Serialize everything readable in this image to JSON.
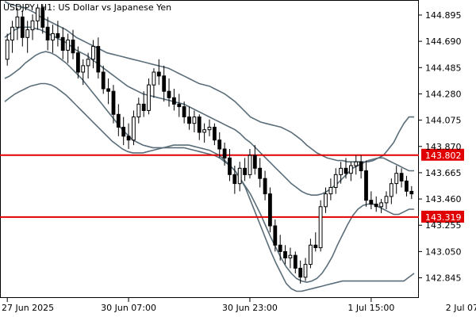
{
  "chart_data": {
    "type": "candlestick",
    "title": "USDJPY, H1:  US Dollar vs Japanese Yen",
    "ylim": [
      142.7,
      145.0
    ],
    "y_ticks": [
      "144.895",
      "144.690",
      "144.485",
      "144.280",
      "144.075",
      "143.870",
      "143.665",
      "143.460",
      "143.255",
      "143.050",
      "142.845"
    ],
    "x_ticks": [
      {
        "label": "27 Jun 2025",
        "index": 0
      },
      {
        "label": "30 Jun 07:00",
        "index": 24
      },
      {
        "label": "30 Jun 23:00",
        "index": 48
      },
      {
        "label": "1 Jul 15:00",
        "index": 72
      },
      {
        "label": "2 Jul 07:00",
        "index": 96
      }
    ],
    "horizontal_levels": [
      {
        "value": 143.802,
        "label": "143.802",
        "color": "#e00000"
      },
      {
        "value": 143.319,
        "label": "143.319",
        "color": "#e00000"
      }
    ],
    "colors": {
      "bull_body": "#ffffff",
      "bear_body": "#000000",
      "wick": "#000000",
      "band": "#5a6e7a",
      "axis": "#000000",
      "level": "#e00000"
    },
    "candles": [
      [
        144.55,
        144.75,
        144.5,
        144.7
      ],
      [
        144.7,
        144.85,
        144.6,
        144.8
      ],
      [
        144.8,
        144.95,
        144.7,
        144.88
      ],
      [
        144.88,
        144.93,
        144.65,
        144.72
      ],
      [
        144.72,
        144.85,
        144.6,
        144.78
      ],
      [
        144.78,
        144.9,
        144.7,
        144.85
      ],
      [
        144.85,
        144.98,
        144.78,
        144.95
      ],
      [
        144.95,
        144.98,
        144.75,
        144.8
      ],
      [
        144.8,
        144.88,
        144.62,
        144.7
      ],
      [
        144.7,
        144.82,
        144.6,
        144.75
      ],
      [
        144.75,
        144.85,
        144.65,
        144.72
      ],
      [
        144.72,
        144.8,
        144.55,
        144.62
      ],
      [
        144.62,
        144.75,
        144.52,
        144.7
      ],
      [
        144.7,
        144.78,
        144.55,
        144.6
      ],
      [
        144.6,
        144.65,
        144.4,
        144.45
      ],
      [
        144.45,
        144.55,
        144.35,
        144.5
      ],
      [
        144.5,
        144.6,
        144.4,
        144.55
      ],
      [
        144.55,
        144.7,
        144.48,
        144.65
      ],
      [
        144.65,
        144.72,
        144.4,
        144.45
      ],
      [
        144.45,
        144.5,
        144.28,
        144.32
      ],
      [
        144.32,
        144.4,
        144.2,
        144.3
      ],
      [
        144.3,
        144.35,
        144.05,
        144.12
      ],
      [
        144.12,
        144.2,
        143.95,
        144.02
      ],
      [
        144.02,
        144.1,
        143.88,
        143.95
      ],
      [
        143.95,
        144.05,
        143.85,
        143.92
      ],
      [
        143.92,
        144.15,
        143.88,
        144.1
      ],
      [
        144.1,
        144.25,
        144.05,
        144.2
      ],
      [
        144.2,
        144.3,
        144.1,
        144.15
      ],
      [
        144.15,
        144.4,
        144.12,
        144.35
      ],
      [
        144.35,
        144.48,
        144.25,
        144.45
      ],
      [
        144.45,
        144.55,
        144.35,
        144.42
      ],
      [
        144.42,
        144.5,
        144.22,
        144.3
      ],
      [
        144.3,
        144.4,
        144.18,
        144.25
      ],
      [
        144.25,
        144.32,
        144.15,
        144.2
      ],
      [
        144.2,
        144.28,
        144.1,
        144.18
      ],
      [
        144.18,
        144.22,
        144.05,
        144.1
      ],
      [
        144.1,
        144.18,
        144.0,
        144.05
      ],
      [
        144.05,
        144.15,
        143.98,
        144.1
      ],
      [
        144.1,
        144.12,
        143.92,
        143.98
      ],
      [
        143.98,
        144.05,
        143.9,
        144.0
      ],
      [
        144.0,
        144.08,
        143.95,
        144.02
      ],
      [
        144.02,
        144.05,
        143.88,
        143.92
      ],
      [
        143.92,
        143.98,
        143.78,
        143.85
      ],
      [
        143.85,
        143.9,
        143.72,
        143.78
      ],
      [
        143.78,
        143.85,
        143.6,
        143.65
      ],
      [
        143.65,
        143.72,
        143.5,
        143.58
      ],
      [
        143.58,
        143.75,
        143.52,
        143.7
      ],
      [
        143.7,
        143.78,
        143.6,
        143.65
      ],
      [
        143.65,
        143.85,
        143.62,
        143.8
      ],
      [
        143.8,
        143.88,
        143.65,
        143.7
      ],
      [
        143.7,
        143.78,
        143.55,
        143.62
      ],
      [
        143.62,
        143.68,
        143.45,
        143.5
      ],
      [
        143.5,
        143.55,
        143.2,
        143.25
      ],
      [
        143.25,
        143.3,
        143.05,
        143.1
      ],
      [
        143.1,
        143.18,
        142.98,
        143.05
      ],
      [
        143.05,
        143.1,
        142.95,
        143.0
      ],
      [
        143.0,
        143.08,
        142.92,
        143.02
      ],
      [
        143.02,
        143.05,
        142.88,
        142.92
      ],
      [
        142.92,
        142.98,
        142.8,
        142.85
      ],
      [
        142.85,
        143.0,
        142.82,
        142.95
      ],
      [
        142.95,
        143.15,
        142.92,
        143.1
      ],
      [
        143.1,
        143.2,
        143.05,
        143.08
      ],
      [
        143.08,
        143.45,
        143.05,
        143.4
      ],
      [
        143.4,
        143.55,
        143.35,
        143.5
      ],
      [
        143.5,
        143.62,
        143.45,
        143.55
      ],
      [
        143.55,
        143.7,
        143.5,
        143.65
      ],
      [
        143.65,
        143.75,
        143.58,
        143.7
      ],
      [
        143.7,
        143.78,
        143.62,
        143.66
      ],
      [
        143.66,
        143.75,
        143.6,
        143.72
      ],
      [
        143.72,
        143.8,
        143.65,
        143.75
      ],
      [
        143.75,
        143.8,
        143.62,
        143.68
      ],
      [
        143.68,
        143.76,
        143.4,
        143.45
      ],
      [
        143.45,
        143.52,
        143.38,
        143.42
      ],
      [
        143.42,
        143.48,
        143.36,
        143.4
      ],
      [
        143.4,
        143.46,
        143.35,
        143.43
      ],
      [
        143.43,
        143.52,
        143.38,
        143.48
      ],
      [
        143.48,
        143.62,
        143.42,
        143.58
      ],
      [
        143.58,
        143.72,
        143.5,
        143.66
      ],
      [
        143.66,
        143.7,
        143.55,
        143.6
      ],
      [
        143.6,
        143.64,
        143.48,
        143.52
      ],
      [
        143.52,
        143.56,
        143.46,
        143.5
      ]
    ],
    "bands": {
      "outer_upper": [
        145.0,
        144.98,
        144.97,
        144.96,
        144.95,
        144.93,
        144.91,
        144.88,
        144.86,
        144.84,
        144.82,
        144.8,
        144.78,
        144.75,
        144.72,
        144.7,
        144.68,
        144.66,
        144.64,
        144.62,
        144.6,
        144.59,
        144.58,
        144.57,
        144.56,
        144.55,
        144.54,
        144.53,
        144.52,
        144.51,
        144.5,
        144.49,
        144.48,
        144.46,
        144.44,
        144.42,
        144.4,
        144.38,
        144.36,
        144.35,
        144.34,
        144.32,
        144.3,
        144.28,
        144.25,
        144.22,
        144.18,
        144.14,
        144.1,
        144.08,
        144.06,
        144.05,
        144.04,
        144.03,
        144.02,
        144.0,
        143.98,
        143.95,
        143.92,
        143.88,
        143.85,
        143.82,
        143.8,
        143.78,
        143.77,
        143.76,
        143.76,
        143.75,
        143.75,
        143.75,
        143.75,
        143.75,
        143.76,
        143.78,
        143.8,
        143.85,
        143.9,
        143.98,
        144.05,
        144.1,
        144.1
      ],
      "inner_upper": [
        144.72,
        144.75,
        144.78,
        144.8,
        144.8,
        144.8,
        144.79,
        144.78,
        144.76,
        144.74,
        144.72,
        144.7,
        144.68,
        144.65,
        144.62,
        144.6,
        144.58,
        144.55,
        144.52,
        144.49,
        144.46,
        144.43,
        144.4,
        144.37,
        144.34,
        144.32,
        144.3,
        144.28,
        144.27,
        144.26,
        144.25,
        144.24,
        144.23,
        144.22,
        144.21,
        144.2,
        144.18,
        144.16,
        144.14,
        144.12,
        144.1,
        144.08,
        144.06,
        144.04,
        144.02,
        144.0,
        143.97,
        143.93,
        143.9,
        143.86,
        143.82,
        143.78,
        143.74,
        143.7,
        143.66,
        143.62,
        143.58,
        143.55,
        143.52,
        143.5,
        143.49,
        143.49,
        143.5,
        143.52,
        143.55,
        143.58,
        143.62,
        143.66,
        143.7,
        143.72,
        143.74,
        143.76,
        143.77,
        143.78,
        143.78,
        143.76,
        143.74,
        143.72,
        143.7,
        143.68,
        143.68
      ],
      "inner_lower": [
        144.4,
        144.42,
        144.45,
        144.48,
        144.52,
        144.55,
        144.58,
        144.6,
        144.61,
        144.6,
        144.58,
        144.55,
        144.52,
        144.48,
        144.44,
        144.4,
        144.35,
        144.3,
        144.25,
        144.2,
        144.15,
        144.1,
        144.05,
        144.0,
        143.96,
        143.92,
        143.9,
        143.88,
        143.87,
        143.86,
        143.86,
        143.86,
        143.87,
        143.88,
        143.88,
        143.88,
        143.88,
        143.87,
        143.86,
        143.85,
        143.84,
        143.82,
        143.8,
        143.76,
        143.72,
        143.68,
        143.62,
        143.56,
        143.5,
        143.42,
        143.34,
        143.25,
        143.16,
        143.08,
        143.0,
        142.93,
        142.88,
        142.84,
        142.82,
        142.81,
        142.82,
        142.84,
        142.88,
        142.94,
        143.01,
        143.1,
        143.18,
        143.26,
        143.33,
        143.38,
        143.41,
        143.42,
        143.42,
        143.4,
        143.38,
        143.36,
        143.34,
        143.34,
        143.36,
        143.38,
        143.38
      ],
      "outer_lower": [
        144.22,
        144.25,
        144.28,
        144.3,
        144.32,
        144.34,
        144.35,
        144.36,
        144.36,
        144.35,
        144.33,
        144.3,
        144.27,
        144.23,
        144.19,
        144.15,
        144.11,
        144.07,
        144.03,
        143.99,
        143.95,
        143.91,
        143.88,
        143.85,
        143.83,
        143.82,
        143.82,
        143.82,
        143.83,
        143.84,
        143.85,
        143.86,
        143.86,
        143.86,
        143.86,
        143.86,
        143.85,
        143.84,
        143.83,
        143.82,
        143.81,
        143.8,
        143.78,
        143.75,
        143.72,
        143.68,
        143.62,
        143.55,
        143.45,
        143.35,
        143.25,
        143.15,
        143.05,
        142.96,
        142.88,
        142.8,
        142.76,
        142.74,
        142.74,
        142.75,
        142.76,
        142.77,
        142.78,
        142.79,
        142.8,
        142.81,
        142.82,
        142.82,
        142.82,
        142.82,
        142.82,
        142.82,
        142.82,
        142.82,
        142.82,
        142.82,
        142.82,
        142.82,
        142.82,
        142.85,
        142.88
      ]
    }
  }
}
